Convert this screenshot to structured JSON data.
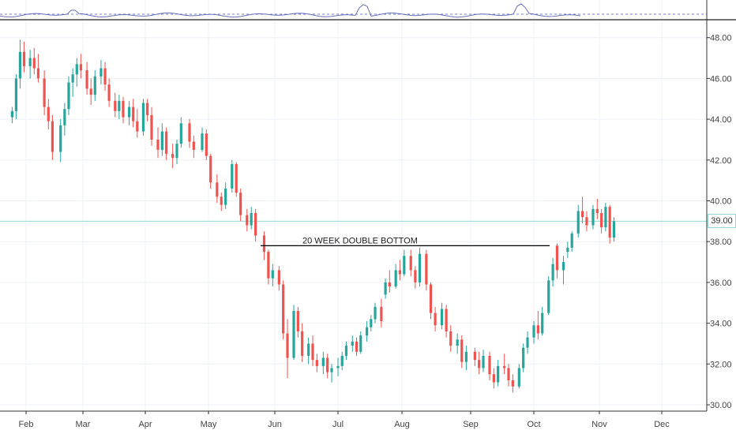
{
  "chart_data": {
    "type": "candlestick",
    "title": "",
    "xlabel": "",
    "ylabel": "",
    "x_ticks": [
      "Feb",
      "Mar",
      "Apr",
      "May",
      "Jun",
      "Jul",
      "Aug",
      "Sep",
      "Oct",
      "Nov",
      "Dec"
    ],
    "y_ticks": [
      "30.00",
      "32.00",
      "34.00",
      "36.00",
      "38.00",
      "40.00",
      "42.00",
      "44.00",
      "46.00",
      "48.00"
    ],
    "ylim": [
      29.8,
      48.3
    ],
    "grid": true,
    "current_price": "39.00",
    "annotation": {
      "text": "20 WEEK DOUBLE BOTTOM",
      "level": 37.8,
      "from_month": "May",
      "to_month": "Oct"
    },
    "candles": [
      {
        "date": "Jan 25",
        "o": 44.1,
        "h": 44.6,
        "l": 43.8,
        "c": 44.4
      },
      {
        "date": "Jan 27",
        "o": 44.4,
        "h": 46.2,
        "l": 44.0,
        "c": 46.0
      },
      {
        "date": "Jan 29",
        "o": 46.0,
        "h": 47.9,
        "l": 45.5,
        "c": 47.3
      },
      {
        "date": "Jan 31",
        "o": 47.3,
        "h": 47.8,
        "l": 46.3,
        "c": 46.6
      },
      {
        "date": "Feb 3",
        "o": 46.6,
        "h": 47.4,
        "l": 46.0,
        "c": 47.0
      },
      {
        "date": "Feb 5",
        "o": 47.0,
        "h": 47.5,
        "l": 46.2,
        "c": 46.5
      },
      {
        "date": "Feb 7",
        "o": 46.5,
        "h": 47.2,
        "l": 45.8,
        "c": 46.0
      },
      {
        "date": "Feb 10",
        "o": 46.0,
        "h": 46.4,
        "l": 44.2,
        "c": 44.6
      },
      {
        "date": "Feb 12",
        "o": 44.6,
        "h": 45.0,
        "l": 43.5,
        "c": 43.9
      },
      {
        "date": "Feb 14",
        "o": 43.9,
        "h": 44.2,
        "l": 42.0,
        "c": 42.4
      },
      {
        "date": "Feb 18",
        "o": 42.4,
        "h": 44.0,
        "l": 41.9,
        "c": 43.7
      },
      {
        "date": "Feb 20",
        "o": 43.7,
        "h": 44.8,
        "l": 43.2,
        "c": 44.5
      },
      {
        "date": "Feb 22",
        "o": 44.5,
        "h": 46.1,
        "l": 44.2,
        "c": 45.8
      },
      {
        "date": "Feb 24",
        "o": 45.8,
        "h": 46.5,
        "l": 45.1,
        "c": 46.2
      },
      {
        "date": "Feb 26",
        "o": 46.2,
        "h": 47.0,
        "l": 45.6,
        "c": 46.7
      },
      {
        "date": "Feb 28",
        "o": 46.7,
        "h": 47.2,
        "l": 46.0,
        "c": 46.4
      },
      {
        "date": "Mar 3",
        "o": 46.4,
        "h": 46.8,
        "l": 45.2,
        "c": 45.5
      },
      {
        "date": "Mar 5",
        "o": 45.5,
        "h": 46.0,
        "l": 44.7,
        "c": 45.2
      },
      {
        "date": "Mar 7",
        "o": 45.2,
        "h": 46.4,
        "l": 44.9,
        "c": 46.1
      },
      {
        "date": "Mar 10",
        "o": 46.1,
        "h": 46.9,
        "l": 45.7,
        "c": 46.5
      },
      {
        "date": "Mar 12",
        "o": 46.5,
        "h": 46.8,
        "l": 45.4,
        "c": 45.7
      },
      {
        "date": "Mar 14",
        "o": 45.7,
        "h": 46.0,
        "l": 44.6,
        "c": 44.9
      },
      {
        "date": "Mar 17",
        "o": 44.9,
        "h": 45.3,
        "l": 44.1,
        "c": 44.4
      },
      {
        "date": "Mar 19",
        "o": 44.4,
        "h": 45.2,
        "l": 44.0,
        "c": 44.9
      },
      {
        "date": "Mar 21",
        "o": 44.9,
        "h": 45.1,
        "l": 43.8,
        "c": 44.1
      },
      {
        "date": "Mar 24",
        "o": 44.1,
        "h": 44.9,
        "l": 43.7,
        "c": 44.6
      },
      {
        "date": "Mar 26",
        "o": 44.6,
        "h": 45.0,
        "l": 43.6,
        "c": 43.9
      },
      {
        "date": "Mar 28",
        "o": 43.9,
        "h": 44.5,
        "l": 43.1,
        "c": 43.4
      },
      {
        "date": "Mar 31",
        "o": 43.4,
        "h": 45.0,
        "l": 43.2,
        "c": 44.8
      },
      {
        "date": "Apr 2",
        "o": 44.8,
        "h": 45.0,
        "l": 43.9,
        "c": 44.2
      },
      {
        "date": "Apr 4",
        "o": 44.2,
        "h": 44.6,
        "l": 42.7,
        "c": 43.0
      },
      {
        "date": "Apr 7",
        "o": 43.0,
        "h": 43.6,
        "l": 42.1,
        "c": 42.5
      },
      {
        "date": "Apr 9",
        "o": 42.5,
        "h": 43.8,
        "l": 42.2,
        "c": 43.4
      },
      {
        "date": "Apr 11",
        "o": 43.4,
        "h": 43.6,
        "l": 42.0,
        "c": 42.3
      },
      {
        "date": "Apr 14",
        "o": 42.3,
        "h": 42.8,
        "l": 41.6,
        "c": 42.1
      },
      {
        "date": "Apr 16",
        "o": 42.1,
        "h": 43.0,
        "l": 41.8,
        "c": 42.8
      },
      {
        "date": "Apr 18",
        "o": 42.8,
        "h": 44.1,
        "l": 42.6,
        "c": 43.8
      },
      {
        "date": "Apr 22",
        "o": 43.8,
        "h": 44.0,
        "l": 42.6,
        "c": 42.9
      },
      {
        "date": "Apr 24",
        "o": 42.9,
        "h": 43.2,
        "l": 42.1,
        "c": 42.5
      },
      {
        "date": "Apr 28",
        "o": 42.5,
        "h": 43.6,
        "l": 42.4,
        "c": 43.3
      },
      {
        "date": "Apr 30",
        "o": 43.3,
        "h": 43.5,
        "l": 42.0,
        "c": 42.2
      },
      {
        "date": "May 2",
        "o": 42.2,
        "h": 42.3,
        "l": 40.6,
        "c": 40.9
      },
      {
        "date": "May 5",
        "o": 40.9,
        "h": 41.3,
        "l": 39.9,
        "c": 40.2
      },
      {
        "date": "May 7",
        "o": 40.2,
        "h": 40.4,
        "l": 39.5,
        "c": 39.8
      },
      {
        "date": "May 9",
        "o": 39.8,
        "h": 40.9,
        "l": 39.6,
        "c": 40.6
      },
      {
        "date": "May 12",
        "o": 40.6,
        "h": 42.0,
        "l": 40.4,
        "c": 41.8
      },
      {
        "date": "May 14",
        "o": 41.8,
        "h": 41.9,
        "l": 40.2,
        "c": 40.4
      },
      {
        "date": "May 16",
        "o": 40.4,
        "h": 40.6,
        "l": 39.0,
        "c": 39.3
      },
      {
        "date": "May 19",
        "o": 39.3,
        "h": 39.6,
        "l": 38.5,
        "c": 38.8
      },
      {
        "date": "May 21",
        "o": 38.8,
        "h": 39.7,
        "l": 38.6,
        "c": 39.4
      },
      {
        "date": "May 23",
        "o": 39.4,
        "h": 39.6,
        "l": 38.0,
        "c": 38.3
      },
      {
        "date": "May 27",
        "o": 38.3,
        "h": 38.5,
        "l": 37.1,
        "c": 37.5
      },
      {
        "date": "May 29",
        "o": 37.5,
        "h": 37.6,
        "l": 35.9,
        "c": 36.2
      },
      {
        "date": "May 31",
        "o": 36.2,
        "h": 36.9,
        "l": 35.8,
        "c": 36.6
      },
      {
        "date": "Jun 3",
        "o": 36.6,
        "h": 36.8,
        "l": 35.6,
        "c": 35.9
      },
      {
        "date": "Jun 5",
        "o": 35.9,
        "h": 36.1,
        "l": 33.2,
        "c": 33.5
      },
      {
        "date": "Jun 7",
        "o": 33.5,
        "h": 34.2,
        "l": 31.3,
        "c": 32.3
      },
      {
        "date": "Jun 10",
        "o": 32.3,
        "h": 34.9,
        "l": 32.2,
        "c": 34.6
      },
      {
        "date": "Jun 12",
        "o": 34.6,
        "h": 34.8,
        "l": 33.3,
        "c": 33.6
      },
      {
        "date": "Jun 14",
        "o": 33.6,
        "h": 34.0,
        "l": 32.1,
        "c": 32.4
      },
      {
        "date": "Jun 17",
        "o": 32.4,
        "h": 33.3,
        "l": 32.0,
        "c": 33.0
      },
      {
        "date": "Jun 19",
        "o": 33.0,
        "h": 33.4,
        "l": 31.9,
        "c": 32.2
      },
      {
        "date": "Jun 21",
        "o": 32.2,
        "h": 32.5,
        "l": 31.6,
        "c": 31.9
      },
      {
        "date": "Jun 24",
        "o": 31.9,
        "h": 32.6,
        "l": 31.5,
        "c": 32.3
      },
      {
        "date": "Jun 26",
        "o": 32.3,
        "h": 32.5,
        "l": 31.3,
        "c": 31.6
      },
      {
        "date": "Jun 28",
        "o": 31.6,
        "h": 32.0,
        "l": 31.1,
        "c": 31.8
      },
      {
        "date": "Jul 1",
        "o": 31.8,
        "h": 32.3,
        "l": 31.4,
        "c": 31.9
      },
      {
        "date": "Jul 3",
        "o": 31.9,
        "h": 32.6,
        "l": 31.7,
        "c": 32.4
      },
      {
        "date": "Jul 5",
        "o": 32.4,
        "h": 33.1,
        "l": 32.2,
        "c": 32.9
      },
      {
        "date": "Jul 8",
        "o": 32.9,
        "h": 33.4,
        "l": 32.6,
        "c": 33.1
      },
      {
        "date": "Jul 10",
        "o": 33.1,
        "h": 33.3,
        "l": 32.4,
        "c": 32.6
      },
      {
        "date": "Jul 12",
        "o": 32.6,
        "h": 33.6,
        "l": 32.5,
        "c": 33.4
      },
      {
        "date": "Jul 15",
        "o": 33.4,
        "h": 34.1,
        "l": 33.1,
        "c": 33.8
      },
      {
        "date": "Jul 17",
        "o": 33.8,
        "h": 34.4,
        "l": 33.6,
        "c": 34.2
      },
      {
        "date": "Jul 19",
        "o": 34.2,
        "h": 35.0,
        "l": 34.0,
        "c": 34.8
      },
      {
        "date": "Jul 22",
        "o": 34.8,
        "h": 35.2,
        "l": 33.8,
        "c": 34.1
      },
      {
        "date": "Jul 24",
        "o": 35.4,
        "h": 36.2,
        "l": 35.2,
        "c": 36.0
      },
      {
        "date": "Jul 26",
        "o": 36.0,
        "h": 36.6,
        "l": 35.5,
        "c": 35.8
      },
      {
        "date": "Jul 29",
        "o": 35.8,
        "h": 36.9,
        "l": 35.7,
        "c": 36.6
      },
      {
        "date": "Jul 31",
        "o": 36.6,
        "h": 37.1,
        "l": 36.1,
        "c": 36.4
      },
      {
        "date": "Aug 2",
        "o": 36.4,
        "h": 37.6,
        "l": 36.3,
        "c": 37.3
      },
      {
        "date": "Aug 5",
        "o": 37.3,
        "h": 37.6,
        "l": 36.3,
        "c": 36.6
      },
      {
        "date": "Aug 7",
        "o": 36.6,
        "h": 36.8,
        "l": 35.7,
        "c": 36.0
      },
      {
        "date": "Aug 9",
        "o": 36.0,
        "h": 37.7,
        "l": 35.8,
        "c": 37.4
      },
      {
        "date": "Aug 12",
        "o": 37.4,
        "h": 37.6,
        "l": 35.6,
        "c": 35.9
      },
      {
        "date": "Aug 14",
        "o": 35.9,
        "h": 36.0,
        "l": 34.2,
        "c": 34.5
      },
      {
        "date": "Aug 16",
        "o": 34.5,
        "h": 34.8,
        "l": 33.6,
        "c": 33.9
      },
      {
        "date": "Aug 19",
        "o": 33.9,
        "h": 35.0,
        "l": 33.7,
        "c": 34.7
      },
      {
        "date": "Aug 21",
        "o": 34.7,
        "h": 34.9,
        "l": 33.3,
        "c": 33.6
      },
      {
        "date": "Aug 23",
        "o": 33.6,
        "h": 33.9,
        "l": 32.6,
        "c": 32.9
      },
      {
        "date": "Aug 26",
        "o": 32.9,
        "h": 33.5,
        "l": 32.5,
        "c": 33.2
      },
      {
        "date": "Aug 28",
        "o": 33.2,
        "h": 33.4,
        "l": 31.8,
        "c": 32.1
      },
      {
        "date": "Aug 30",
        "o": 32.1,
        "h": 32.9,
        "l": 31.7,
        "c": 32.6
      },
      {
        "date": "Sep 3",
        "o": 32.6,
        "h": 32.8,
        "l": 31.9,
        "c": 32.2
      },
      {
        "date": "Sep 5",
        "o": 32.2,
        "h": 32.6,
        "l": 31.5,
        "c": 31.8
      },
      {
        "date": "Sep 7",
        "o": 31.8,
        "h": 32.7,
        "l": 31.6,
        "c": 32.4
      },
      {
        "date": "Sep 10",
        "o": 32.4,
        "h": 32.6,
        "l": 31.2,
        "c": 31.5
      },
      {
        "date": "Sep 12",
        "o": 31.5,
        "h": 31.8,
        "l": 30.8,
        "c": 31.1
      },
      {
        "date": "Sep 14",
        "o": 31.1,
        "h": 32.2,
        "l": 30.9,
        "c": 31.9
      },
      {
        "date": "Sep 17",
        "o": 31.9,
        "h": 32.5,
        "l": 31.5,
        "c": 31.8
      },
      {
        "date": "Sep 19",
        "o": 31.8,
        "h": 32.0,
        "l": 30.9,
        "c": 31.2
      },
      {
        "date": "Sep 21",
        "o": 31.2,
        "h": 31.5,
        "l": 30.6,
        "c": 30.9
      },
      {
        "date": "Sep 24",
        "o": 30.9,
        "h": 32.0,
        "l": 30.8,
        "c": 31.8
      },
      {
        "date": "Sep 26",
        "o": 31.8,
        "h": 33.0,
        "l": 31.6,
        "c": 32.8
      },
      {
        "date": "Sep 28",
        "o": 32.8,
        "h": 33.6,
        "l": 32.5,
        "c": 33.3
      },
      {
        "date": "Oct 1",
        "o": 33.3,
        "h": 34.1,
        "l": 33.0,
        "c": 33.9
      },
      {
        "date": "Oct 3",
        "o": 33.9,
        "h": 34.6,
        "l": 33.2,
        "c": 33.5
      },
      {
        "date": "Oct 5",
        "o": 33.5,
        "h": 34.8,
        "l": 33.4,
        "c": 34.5
      },
      {
        "date": "Oct 8",
        "o": 34.5,
        "h": 36.3,
        "l": 34.4,
        "c": 36.1
      },
      {
        "date": "Oct 10",
        "o": 36.1,
        "h": 37.2,
        "l": 35.8,
        "c": 36.9
      },
      {
        "date": "Oct 12",
        "o": 37.8,
        "h": 37.9,
        "l": 36.2,
        "c": 36.6
      },
      {
        "date": "Oct 15",
        "o": 36.6,
        "h": 37.3,
        "l": 35.9,
        "c": 37.0
      },
      {
        "date": "Oct 17",
        "o": 37.5,
        "h": 38.0,
        "l": 37.2,
        "c": 37.7
      },
      {
        "date": "Oct 19",
        "o": 37.7,
        "h": 38.5,
        "l": 37.5,
        "c": 38.4
      },
      {
        "date": "Oct 22",
        "o": 38.4,
        "h": 39.8,
        "l": 38.2,
        "c": 39.5
      },
      {
        "date": "Oct 24",
        "o": 39.5,
        "h": 40.2,
        "l": 38.9,
        "c": 39.2
      },
      {
        "date": "Oct 26",
        "o": 39.2,
        "h": 39.5,
        "l": 38.5,
        "c": 38.8
      },
      {
        "date": "Oct 29",
        "o": 38.8,
        "h": 39.8,
        "l": 38.6,
        "c": 39.6
      },
      {
        "date": "Oct 31",
        "o": 39.6,
        "h": 40.1,
        "l": 39.1,
        "c": 39.4
      },
      {
        "date": "Nov 2",
        "o": 39.4,
        "h": 39.6,
        "l": 38.4,
        "c": 38.7
      },
      {
        "date": "Nov 4",
        "o": 38.7,
        "h": 39.9,
        "l": 38.5,
        "c": 39.7
      },
      {
        "date": "Nov 6",
        "o": 39.7,
        "h": 39.8,
        "l": 37.9,
        "c": 38.2
      },
      {
        "date": "Nov 8",
        "o": 38.2,
        "h": 39.2,
        "l": 38.0,
        "c": 39.0
      }
    ],
    "colors": {
      "up": "#26a69a",
      "down": "#ef5350",
      "grid": "#eef1f5",
      "axis": "#333333",
      "price_line": "#9ad6d0",
      "indicator_line": "#6b6fb8",
      "indicator_dashed": "#7a7fd0"
    }
  }
}
